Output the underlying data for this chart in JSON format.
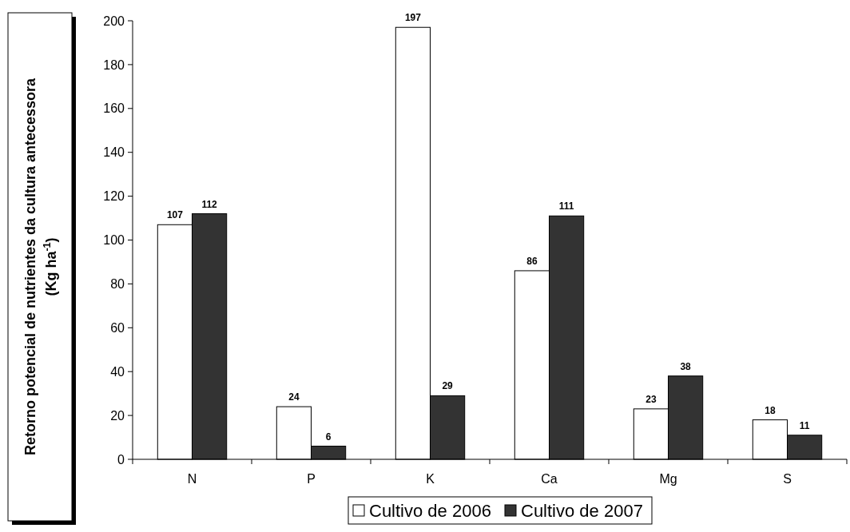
{
  "chart_data": {
    "type": "bar",
    "ylabel": "Retorno potencial de nutrientes da cultura antecessora (Kg ha$^{-1}$)",
    "categories": [
      "N",
      "P",
      "K",
      "Ca",
      "Mg",
      "S"
    ],
    "series": [
      {
        "name": "Cultivo de 2006",
        "color": "#ffffff",
        "values": [
          107,
          24,
          197,
          86,
          23,
          18
        ]
      },
      {
        "name": "Cultivo de 2007",
        "color": "#333333",
        "values": [
          112,
          6,
          29,
          111,
          38,
          11
        ]
      }
    ],
    "ylim": [
      0,
      200
    ],
    "yticks": [
      0,
      20,
      40,
      60,
      80,
      100,
      120,
      140,
      160,
      180,
      200
    ],
    "data_labels": true,
    "legend": "bottom",
    "grid": false
  }
}
